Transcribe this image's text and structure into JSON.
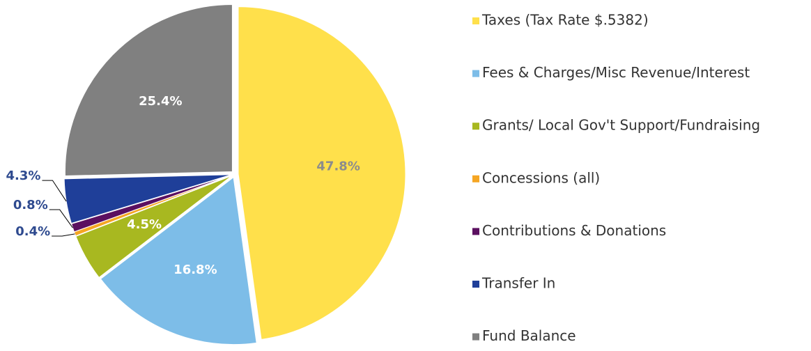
{
  "chart_data": {
    "type": "pie",
    "categories": [
      "Taxes (Tax Rate $.5382)",
      "Fees & Charges/Misc Revenue/Interest",
      "Grants/ Local Gov't Support/Fundraising",
      "Concessions (all)",
      "Contributions & Donations",
      "Transfer In",
      "Fund Balance"
    ],
    "values": [
      47.8,
      16.8,
      4.5,
      0.4,
      0.8,
      4.3,
      25.4
    ],
    "value_labels": [
      "47.8%",
      "16.8%",
      "4.5%",
      "0.4%",
      "0.8%",
      "4.3%",
      "25.4%"
    ],
    "colors": [
      "#FFE04B",
      "#7DBDE8",
      "#A8B820",
      "#F5A623",
      "#5B1060",
      "#1F3F99",
      "#808080"
    ],
    "legend": "right"
  }
}
